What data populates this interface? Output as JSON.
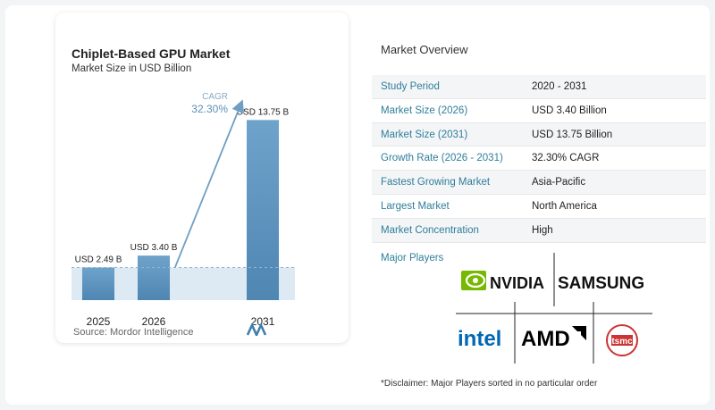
{
  "chart": {
    "title": "Chiplet-Based GPU Market",
    "subtitle": "Market Size in USD Billion",
    "cagr_label": "CAGR",
    "cagr_value": "32.30%",
    "source": "Source: Mordor Intelligence"
  },
  "chart_data": {
    "type": "bar",
    "title": "Chiplet-Based GPU Market",
    "subtitle": "Market Size in USD Billion",
    "categories": [
      "2025",
      "2026",
      "2031"
    ],
    "values": [
      2.49,
      3.4,
      13.75
    ],
    "data_labels": [
      "USD 2.49 B",
      "USD 3.40 B",
      "USD 13.75 B"
    ],
    "ylim": [
      0,
      15
    ],
    "grid": false,
    "colors": {
      "bar": "#5f96c0",
      "arrow": "#6f9fc2",
      "dashed": "#8fb4d1",
      "band": "#dde9f3"
    }
  },
  "overview": {
    "title": "Market Overview",
    "rows": [
      {
        "label": "Study Period",
        "value": "2020 - 2031"
      },
      {
        "label": "Market Size (2026)",
        "value": "USD 3.40 Billion"
      },
      {
        "label": "Market Size (2031)",
        "value": "USD 13.75 Billion"
      },
      {
        "label": "Growth Rate (2026 - 2031)",
        "value": "32.30% CAGR"
      },
      {
        "label": "Fastest Growing Market",
        "value": "Asia-Pacific"
      },
      {
        "label": "Largest Market",
        "value": "North America"
      },
      {
        "label": "Market Concentration",
        "value": "High"
      }
    ],
    "players_label": "Major Players",
    "players": [
      "NVIDIA",
      "SAMSUNG",
      "intel",
      "AMD",
      "tsmc"
    ],
    "disclaimer": "*Disclaimer: Major Players sorted in no particular order"
  }
}
